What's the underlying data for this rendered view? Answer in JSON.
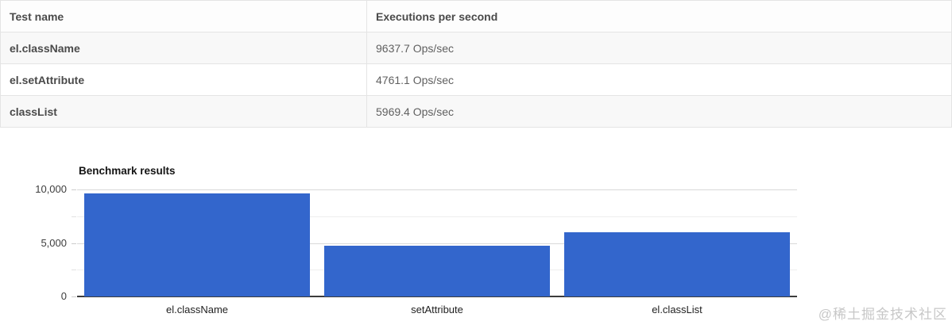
{
  "table": {
    "columns": [
      "Test name",
      "Executions per second"
    ],
    "rows": [
      {
        "name": "el.className",
        "value": "9637.7 Ops/sec"
      },
      {
        "name": "el.setAttribute",
        "value": "4761.1 Ops/sec"
      },
      {
        "name": "classList",
        "value": "5969.4 Ops/sec"
      }
    ]
  },
  "chart_data": {
    "type": "bar",
    "title": "Benchmark results",
    "categories": [
      "el.className",
      "setAttribute",
      "el.classList"
    ],
    "values": [
      9637.7,
      4761.1,
      5969.4
    ],
    "xlabel": "",
    "ylabel": "",
    "ylim": [
      0,
      10000
    ],
    "yticks": [
      {
        "value": 0,
        "label": "0"
      },
      {
        "value": 5000,
        "label": "5,000"
      },
      {
        "value": 10000,
        "label": "10,000"
      }
    ],
    "minor_ticks": [
      2500,
      7500
    ],
    "grid": true,
    "legend_position": "none",
    "bar_color": "#3366cc"
  },
  "watermark": {
    "text": "@稀土掘金技术社区"
  },
  "colors": {
    "bar": "#3366cc",
    "gridline_major": "#d9d9d9",
    "gridline_minor": "#eeeeee",
    "axis_baseline": "#3c3c3c",
    "table_border": "#e4e4e4",
    "row_stripe": "#f8f8f8",
    "watermark": "#c7c7c7"
  }
}
